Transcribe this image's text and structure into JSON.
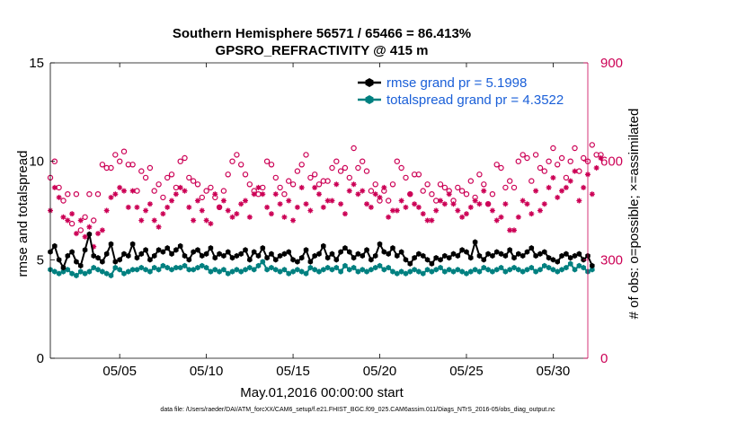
{
  "colors": {
    "left_axis": "#000000",
    "right_axis": "#cc0055",
    "obs": "#cc0055",
    "rmse": "#000000",
    "totalspread": "#008080",
    "legend_text": "#1a5fd8"
  },
  "chart_data": {
    "type": "line",
    "title_line1": "Southern Hemisphere 56571 / 65466 = 86.413%",
    "title_line2": "GPSRO_REFRACTIVITY @ 415 m",
    "xlabel": "May.01,2016 00:00:00 start",
    "ylabel_left": "rmse and totalspread",
    "ylabel_right": "# of obs: o=possible; ×=assimilated",
    "ylim_left": [
      0,
      15
    ],
    "ylim_right": [
      0,
      900
    ],
    "xlim_days": [
      1,
      32
    ],
    "left_ticks": [
      "0",
      "5",
      "10",
      "15"
    ],
    "left_tick_values": [
      0,
      5,
      10,
      15
    ],
    "right_ticks": [
      "0",
      "300",
      "600",
      "900"
    ],
    "right_tick_values": [
      0,
      300,
      600,
      900
    ],
    "x_ticks": [
      "05/05",
      "05/10",
      "05/15",
      "05/20",
      "05/25",
      "05/30"
    ],
    "x_tick_values": [
      5,
      10,
      15,
      20,
      25,
      30
    ],
    "legend": [
      "rmse grand pr = 5.1998",
      "totalspread grand pr = 4.3522"
    ],
    "footer": "data file: /Users/raeder/DAI/ATM_forcXX/CAM6_setup/f.e21.FHIST_BGC.f09_025.CAM6assim.011/Diags_NTrS_2016-05/obs_diag_output.nc",
    "start_day": 1.0,
    "step_days": 0.25,
    "rmse": [
      5.4,
      5.7,
      5.0,
      4.6,
      5.2,
      5.4,
      4.9,
      4.7,
      5.5,
      6.3,
      5.2,
      5.1,
      4.9,
      5.3,
      5.8,
      4.9,
      5.0,
      5.3,
      5.2,
      5.8,
      5.1,
      5.3,
      5.5,
      5.0,
      5.2,
      5.5,
      5.4,
      5.6,
      5.3,
      5.5,
      5.7,
      5.2,
      5.0,
      5.4,
      5.5,
      5.2,
      5.3,
      5.6,
      5.1,
      5.3,
      5.2,
      5.4,
      5.1,
      5.2,
      5.3,
      5.5,
      5.0,
      5.4,
      5.2,
      5.6,
      5.1,
      5.3,
      5.0,
      5.2,
      5.3,
      5.4,
      5.0,
      4.9,
      5.1,
      5.5,
      4.9,
      5.2,
      5.3,
      5.7,
      5.1,
      5.3,
      5.0,
      5.4,
      5.6,
      5.4,
      5.1,
      5.3,
      5.2,
      5.5,
      5.0,
      5.2,
      5.8,
      5.4,
      5.3,
      5.6,
      5.2,
      5.4,
      5.0,
      4.8,
      5.1,
      5.3,
      5.2,
      5.0,
      4.8,
      5.1,
      5.0,
      5.2,
      5.1,
      5.3,
      5.2,
      5.5,
      5.4,
      5.1,
      5.9,
      5.2,
      5.0,
      5.3,
      5.2,
      5.4,
      5.3,
      5.2,
      5.5,
      5.1,
      5.3,
      5.2,
      5.4,
      5.6,
      5.2,
      5.3,
      5.4,
      5.1,
      5.0,
      4.9,
      5.2,
      5.3,
      5.1,
      5.2,
      5.3,
      5.0,
      5.2,
      4.7
    ],
    "totalspread": [
      4.5,
      4.4,
      4.3,
      4.4,
      4.5,
      4.3,
      4.2,
      4.4,
      4.3,
      4.4,
      4.6,
      4.5,
      4.4,
      4.3,
      4.2,
      4.6,
      4.5,
      4.3,
      4.4,
      4.5,
      4.5,
      4.6,
      4.5,
      4.4,
      4.6,
      4.5,
      4.7,
      4.6,
      4.5,
      4.6,
      4.6,
      4.7,
      4.5,
      4.5,
      4.6,
      4.7,
      4.6,
      4.4,
      4.5,
      4.4,
      4.5,
      4.3,
      4.4,
      4.5,
      4.4,
      4.5,
      4.6,
      4.5,
      4.7,
      4.9,
      4.5,
      4.6,
      4.5,
      4.4,
      4.5,
      4.3,
      4.4,
      4.5,
      4.4,
      4.3,
      4.6,
      4.5,
      4.4,
      4.5,
      4.6,
      4.5,
      4.6,
      4.4,
      4.7,
      4.5,
      4.6,
      4.4,
      4.5,
      4.4,
      4.5,
      4.6,
      4.7,
      4.5,
      4.6,
      4.4,
      4.3,
      4.4,
      4.3,
      4.4,
      4.5,
      4.4,
      4.3,
      4.5,
      4.4,
      4.5,
      4.6,
      4.4,
      4.5,
      4.4,
      4.5,
      4.4,
      4.3,
      4.4,
      4.5,
      4.4,
      4.6,
      4.5,
      4.4,
      4.5,
      4.6,
      4.4,
      4.5,
      4.6,
      4.5,
      4.4,
      4.5,
      4.6,
      4.4,
      4.5,
      4.7,
      4.6,
      4.5,
      4.4,
      4.5,
      4.6,
      4.8,
      4.5,
      4.7,
      4.6,
      4.4,
      4.5
    ],
    "obs_possible": [
      550,
      600,
      520,
      480,
      500,
      410,
      500,
      390,
      430,
      500,
      420,
      500,
      590,
      580,
      580,
      620,
      600,
      630,
      590,
      590,
      510,
      570,
      550,
      580,
      510,
      530,
      490,
      550,
      560,
      520,
      600,
      610,
      550,
      540,
      530,
      490,
      510,
      520,
      490,
      460,
      510,
      560,
      600,
      620,
      590,
      560,
      530,
      510,
      500,
      520,
      600,
      590,
      550,
      520,
      500,
      540,
      530,
      570,
      590,
      620,
      550,
      560,
      530,
      540,
      540,
      580,
      600,
      570,
      580,
      550,
      640,
      580,
      600,
      570,
      510,
      530,
      480,
      510,
      480,
      530,
      600,
      580,
      550,
      500,
      560,
      560,
      510,
      530,
      500,
      480,
      530,
      520,
      510,
      480,
      520,
      510,
      500,
      540,
      490,
      560,
      530,
      470,
      500,
      590,
      580,
      520,
      540,
      520,
      600,
      620,
      610,
      540,
      620,
      580,
      570,
      600,
      640,
      590,
      610,
      550,
      600,
      640,
      570,
      610,
      600,
      650,
      620,
      620
    ],
    "obs_assimilated": [
      450,
      520,
      490,
      430,
      420,
      440,
      380,
      420,
      370,
      400,
      340,
      380,
      390,
      450,
      490,
      500,
      520,
      510,
      460,
      510,
      460,
      420,
      450,
      470,
      420,
      400,
      440,
      460,
      480,
      500,
      520,
      510,
      460,
      420,
      480,
      450,
      420,
      410,
      500,
      460,
      480,
      450,
      430,
      440,
      470,
      480,
      430,
      500,
      520,
      500,
      460,
      440,
      500,
      470,
      430,
      480,
      420,
      460,
      520,
      470,
      450,
      520,
      500,
      460,
      480,
      480,
      530,
      470,
      440,
      510,
      530,
      500,
      510,
      470,
      460,
      500,
      490,
      520,
      430,
      450,
      450,
      480,
      460,
      500,
      470,
      460,
      440,
      420,
      420,
      450,
      480,
      470,
      500,
      470,
      450,
      430,
      440,
      460,
      480,
      470,
      510,
      470,
      450,
      420,
      430,
      470,
      390,
      390,
      430,
      480,
      470,
      440,
      510,
      450,
      470,
      520,
      550,
      490,
      510,
      520,
      540,
      570,
      480,
      520,
      560,
      500,
      580,
      610
    ]
  }
}
